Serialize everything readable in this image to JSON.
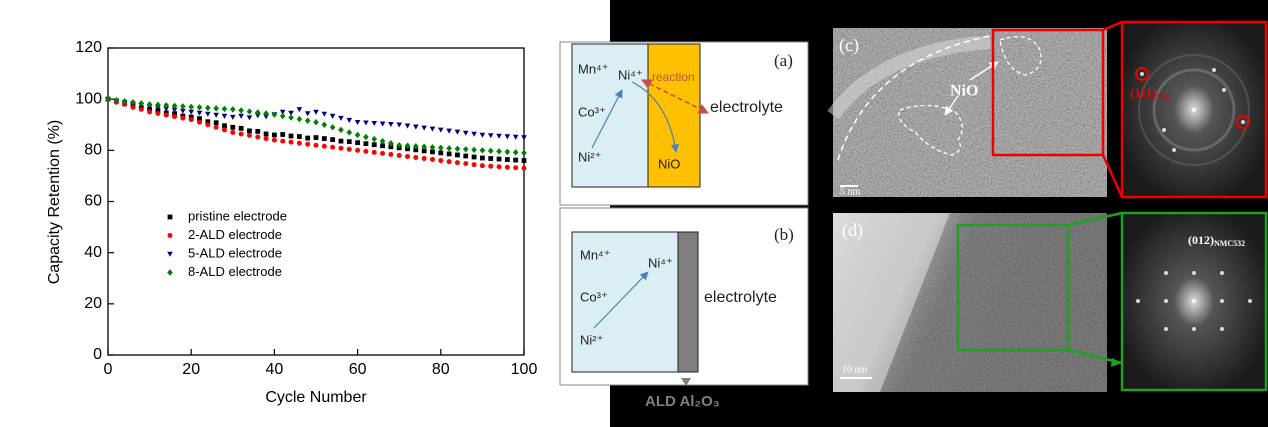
{
  "chart_data": {
    "type": "scatter",
    "xlabel": "Cycle Number",
    "ylabel": "Capacity Retention (%)",
    "xlim": [
      0,
      100
    ],
    "ylim": [
      0,
      120
    ],
    "xticks": [
      0,
      20,
      40,
      60,
      80,
      100
    ],
    "yticks": [
      0,
      20,
      40,
      60,
      80,
      100,
      120
    ],
    "legend": "center-left",
    "x": [
      0,
      2,
      4,
      6,
      8,
      10,
      12,
      14,
      16,
      18,
      20,
      22,
      24,
      26,
      28,
      30,
      32,
      34,
      36,
      38,
      40,
      42,
      44,
      46,
      48,
      50,
      52,
      54,
      56,
      58,
      60,
      62,
      64,
      66,
      68,
      70,
      72,
      74,
      76,
      78,
      80,
      82,
      84,
      86,
      88,
      90,
      92,
      94,
      96,
      98,
      100
    ],
    "series": [
      {
        "name": "pristine electrode",
        "color": "#000000",
        "marker": "square",
        "values": [
          100,
          99.3,
          98.2,
          97.8,
          96.6,
          96,
          95.6,
          94.6,
          94.3,
          93.4,
          93,
          92.4,
          91.2,
          90.8,
          89.6,
          89,
          88.6,
          87.6,
          87.4,
          86.4,
          86,
          86.2,
          85.6,
          85.4,
          84.8,
          85,
          84.6,
          84.2,
          83.6,
          83.4,
          83,
          82.6,
          82.2,
          81.8,
          81.4,
          81,
          80.6,
          80.2,
          79.8,
          79.4,
          79,
          78.6,
          78.2,
          77.8,
          77.4,
          77,
          76.8,
          76.6,
          76.4,
          76.2,
          76
        ]
      },
      {
        "name": "2-ALD electrode",
        "color": "#ff0000",
        "marker": "circle",
        "values": [
          100,
          98.8,
          98,
          96.8,
          96,
          95,
          94.4,
          93.8,
          93.2,
          92.6,
          92,
          91,
          90,
          89,
          88,
          87,
          86.4,
          85.8,
          85.2,
          84.6,
          84,
          83.6,
          83.2,
          82.8,
          82.4,
          82,
          81.6,
          81.2,
          80.8,
          80.4,
          80,
          79.6,
          79.2,
          78.8,
          78.4,
          78,
          77.6,
          77.2,
          76.8,
          76.4,
          76,
          75.6,
          75.2,
          74.8,
          74.4,
          74,
          73.8,
          73.6,
          73.4,
          73.2,
          73
        ]
      },
      {
        "name": "5-ALD electrode",
        "color": "#000080",
        "marker": "triangle-down",
        "values": [
          100,
          99.4,
          98.8,
          98.2,
          97.6,
          97,
          96.6,
          96.2,
          95.8,
          95.4,
          95,
          94.6,
          94.2,
          93.8,
          93.4,
          93,
          93.4,
          92.8,
          93.6,
          93.2,
          94,
          95,
          94.6,
          96,
          94.4,
          95,
          94.2,
          93.4,
          92.6,
          91.8,
          91,
          90.8,
          90.6,
          90.4,
          90.2,
          90,
          89.6,
          89.2,
          88.8,
          88.4,
          88,
          87.6,
          87.2,
          86.8,
          86.4,
          86,
          85.8,
          85.6,
          85.4,
          85.2,
          85
        ]
      },
      {
        "name": "8-ALD electrode",
        "color": "#008000",
        "marker": "diamond",
        "values": [
          100,
          99.6,
          99.2,
          98.8,
          98.4,
          98,
          97.8,
          97.6,
          97.4,
          97.2,
          97,
          96.8,
          96.6,
          96.4,
          96.2,
          96,
          95.6,
          95.2,
          94.8,
          94.4,
          94,
          93.4,
          92.8,
          92.2,
          91.6,
          91,
          90,
          89,
          88,
          87,
          86,
          85.2,
          84.4,
          83.6,
          82.8,
          82,
          81.8,
          81.6,
          81.4,
          81.2,
          81,
          80.8,
          80.6,
          80.4,
          80.2,
          80,
          79.8,
          79.6,
          79.4,
          79.2,
          79
        ]
      }
    ]
  },
  "diagram": {
    "panel_a": {
      "label": "(a)",
      "mn": "Mn⁴⁺",
      "ni4": "Ni⁴⁺",
      "co": "Co³⁺",
      "ni2": "Ni²⁺",
      "reaction": "reaction",
      "electrolyte": "electrolyte",
      "product": "NiO"
    },
    "panel_b": {
      "label": "(b)",
      "mn": "Mn⁴⁺",
      "ni4": "Ni⁴⁺",
      "co": "Co³⁺",
      "ni2": "Ni²⁺",
      "electrolyte": "electrolyte"
    },
    "coating": "ALD Al₂O₃"
  },
  "micrographs": {
    "c": {
      "label": "(c)",
      "phase": "NiO",
      "scale": "5 nm",
      "fft_index": "(111)",
      "fft_phase": "NiO"
    },
    "d": {
      "label": "(d)",
      "scale": "10 nm",
      "fft_index": "(012)",
      "fft_phase": "NMC532"
    }
  }
}
